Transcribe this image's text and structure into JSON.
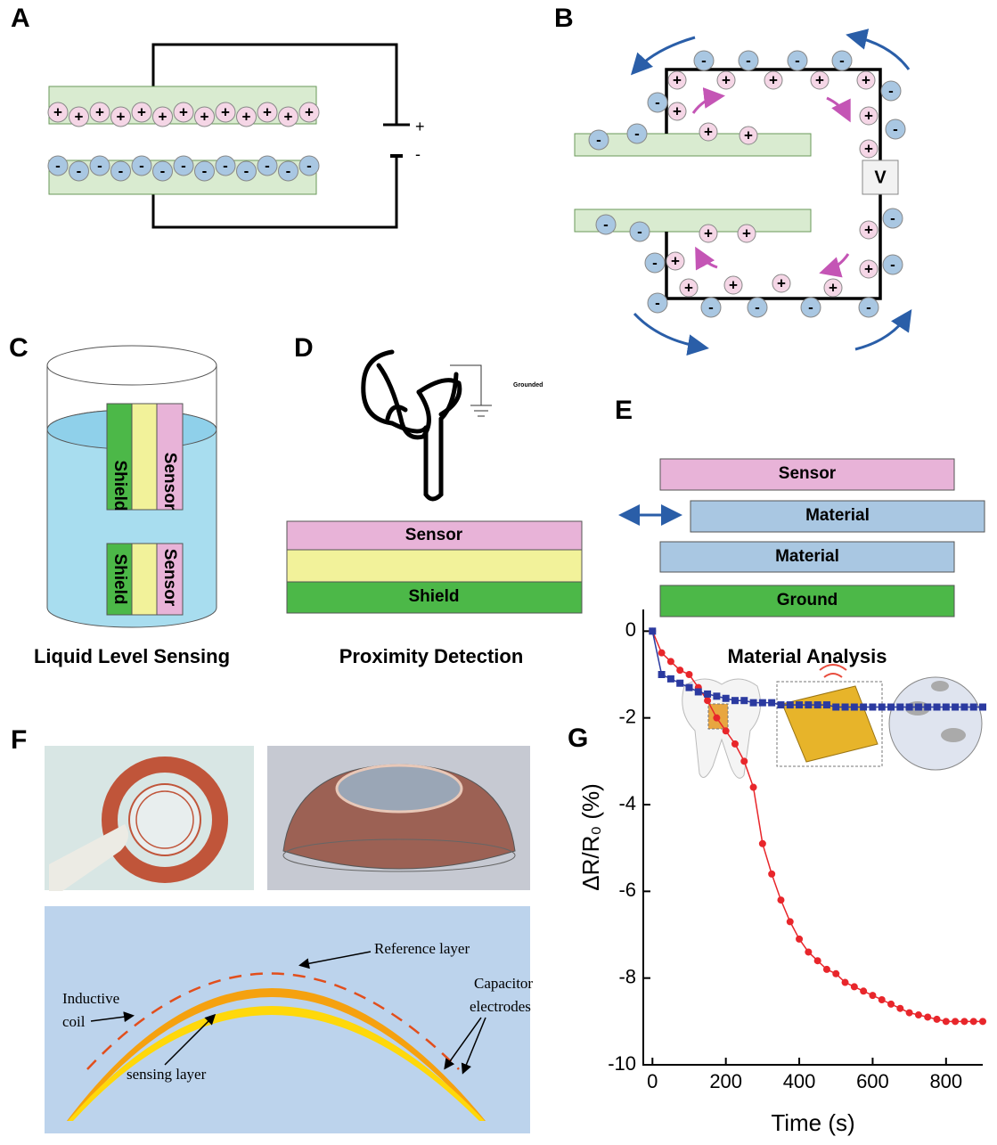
{
  "panels": {
    "a": {
      "label": "A",
      "battery_plus": "+",
      "battery_minus": "-"
    },
    "b": {
      "label": "B",
      "voltmeter": "V"
    },
    "c": {
      "label": "C",
      "shield": "Shield",
      "sensor": "Sensor",
      "caption": "Liquid Level Sensing"
    },
    "d": {
      "label": "D",
      "ground_note": "Grounded",
      "layers": [
        "Sensor",
        "Shield"
      ],
      "caption": "Proximity Detection"
    },
    "e": {
      "label": "E",
      "layers": [
        "Sensor",
        "Material",
        "Material",
        "Ground"
      ],
      "caption": "Material Analysis"
    },
    "f": {
      "label": "F",
      "reference_layer": "Reference layer",
      "inductive_coil": [
        "Inductive",
        "coil"
      ],
      "capacitor_electrodes": [
        "Capacitor",
        "electrodes"
      ],
      "sensing_layer": "sensing layer"
    },
    "g": {
      "label": "G"
    }
  },
  "charges": {
    "plus": "+",
    "minus": "-"
  },
  "chart_data": {
    "type": "line",
    "xlabel": "Time (s)",
    "ylabel": "ΔR/R₀ (%)",
    "x": [
      0,
      25,
      50,
      75,
      100,
      125,
      150,
      175,
      200,
      225,
      250,
      275,
      300,
      325,
      350,
      375,
      400,
      425,
      450,
      475,
      500,
      525,
      550,
      575,
      600,
      625,
      650,
      675,
      700,
      725,
      750,
      775,
      800,
      825,
      850,
      875,
      900
    ],
    "series": [
      {
        "color": "#e8262b",
        "marker": "circle",
        "values": [
          0,
          -0.5,
          -0.7,
          -0.9,
          -1.0,
          -1.3,
          -1.6,
          -2.0,
          -2.3,
          -2.6,
          -3.0,
          -3.6,
          -4.9,
          -5.6,
          -6.2,
          -6.7,
          -7.1,
          -7.4,
          -7.6,
          -7.8,
          -7.9,
          -8.1,
          -8.2,
          -8.3,
          -8.4,
          -8.5,
          -8.6,
          -8.7,
          -8.8,
          -8.85,
          -8.9,
          -8.95,
          -9.0,
          -9.0,
          -9.0,
          -9.0,
          -9.0
        ]
      },
      {
        "color": "#2b3aa0",
        "marker": "square",
        "values": [
          0,
          -1.0,
          -1.1,
          -1.2,
          -1.3,
          -1.4,
          -1.45,
          -1.5,
          -1.55,
          -1.6,
          -1.6,
          -1.65,
          -1.65,
          -1.65,
          -1.7,
          -1.7,
          -1.7,
          -1.7,
          -1.7,
          -1.7,
          -1.75,
          -1.75,
          -1.75,
          -1.75,
          -1.75,
          -1.75,
          -1.75,
          -1.75,
          -1.75,
          -1.75,
          -1.75,
          -1.75,
          -1.75,
          -1.75,
          -1.75,
          -1.75,
          -1.75
        ]
      }
    ],
    "xlim": [
      -25,
      900
    ],
    "ylim": [
      -10,
      0.5
    ],
    "xticks": [
      0,
      200,
      400,
      600,
      800
    ],
    "yticks": [
      0,
      -2,
      -4,
      -6,
      -8,
      -10
    ]
  }
}
